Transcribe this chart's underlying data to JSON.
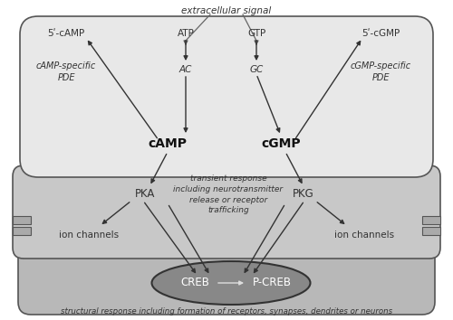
{
  "bg_color": "#ffffff",
  "box1_color": "#e8e8e8",
  "box2_color": "#c8c8c8",
  "box3_color": "#b8b8b8",
  "nucleus_fill": "#888888",
  "ion_rect_color": "#aaaaaa",
  "extracellular_signal": "extracellular signal",
  "atp_label": "ATP",
  "gtp_label": "GTP",
  "ac_label": "AC",
  "gc_label": "GC",
  "camp_label": "cAMP",
  "cgmp_label": "cGMP",
  "five_camp_label": "5ʹ-cAMP",
  "five_cgmp_label": "5ʹ-cGMP",
  "camp_pde_label": "cAMP-specific\nPDE",
  "cgmp_pde_label": "cGMP-specific\nPDE",
  "pka_label": "PKA",
  "pkg_label": "PKG",
  "ion_left_label": "ion channels",
  "ion_right_label": "ion channels",
  "transient_label": "transient response\nincluding neurotransmitter\nrelease or receptor\ntrafficking",
  "creb_label": "CREB",
  "pcreb_label": "P-CREB",
  "structural_label": "structural response including formation of receptors, synapses, dendrites or neurons"
}
